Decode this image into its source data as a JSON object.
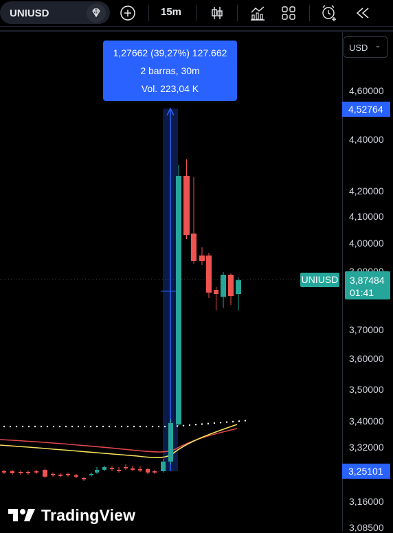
{
  "toolbar": {
    "symbol": "UNIUSD",
    "interval": "15m",
    "icons": [
      "diamond-icon",
      "add-symbol-icon",
      "candle-type-icon",
      "indicators-icon",
      "layout-grid-icon",
      "alert-icon",
      "replay-icon"
    ]
  },
  "axis": {
    "currency": "USD",
    "ticks": [
      "4,60000",
      "4,40000",
      "4,20000",
      "4,10000",
      "4,00000",
      "3,90000",
      "3,70000",
      "3,60000",
      "3,50000",
      "3,40000",
      "3,32000",
      "3,16000",
      "3,08500"
    ],
    "measure_top_price": "4,52764",
    "measure_bottom_price": "3,25101",
    "last_price": "3,87484",
    "countdown": "01:41",
    "symbol_tag": "UNIUSD"
  },
  "measure": {
    "line1": "1,27662 (39,27%) 127.662",
    "line2": "2 barras, 30m",
    "line3": "Vol. 223,04 K"
  },
  "watermark": {
    "text": "TradingView"
  },
  "colors": {
    "up": "#26a69a",
    "down": "#ef5350",
    "measure": "#2962ff",
    "ma_yellow": "#f5e25c",
    "ma_red": "#e0474c"
  }
}
